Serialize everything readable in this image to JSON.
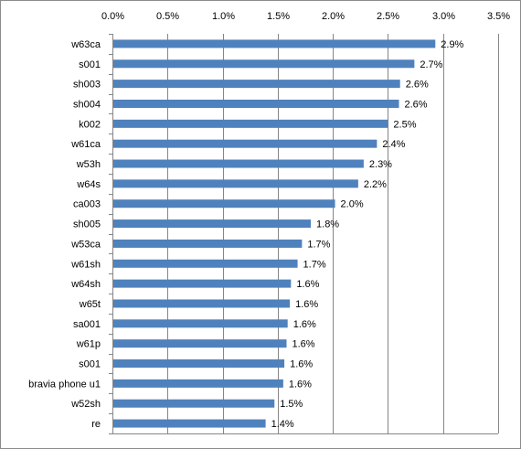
{
  "chart_data": {
    "type": "bar",
    "orientation": "horizontal",
    "title": "",
    "xlabel": "",
    "ylabel": "",
    "xlim": [
      0,
      3.5
    ],
    "x_ticks": [
      0,
      0.5,
      1.0,
      1.5,
      2.0,
      2.5,
      3.0,
      3.5
    ],
    "x_tick_labels": [
      "0.0%",
      "0.5%",
      "1.0%",
      "1.5%",
      "2.0%",
      "2.5%",
      "3.0%",
      "3.5%"
    ],
    "x_axis_position": "top",
    "grid": "vertical",
    "legend": "none",
    "bar_color": "#4f81bd",
    "categories": [
      "w63ca",
      "s001",
      "sh003",
      "sh004",
      "k002",
      "w61ca",
      "w53h",
      "w64s",
      "ca003",
      "sh005",
      "w53ca",
      "w61sh",
      "w64sh",
      "w65t",
      "sa001",
      "w61p",
      "s001",
      "bravia phone u1",
      "w52sh",
      "re"
    ],
    "values": [
      2.93,
      2.74,
      2.61,
      2.6,
      2.5,
      2.4,
      2.28,
      2.23,
      2.02,
      1.8,
      1.72,
      1.68,
      1.62,
      1.61,
      1.59,
      1.58,
      1.56,
      1.55,
      1.47,
      1.39
    ],
    "data_labels": [
      "2.9%",
      "2.7%",
      "2.6%",
      "2.6%",
      "2.5%",
      "2.4%",
      "2.3%",
      "2.2%",
      "2.0%",
      "1.8%",
      "1.7%",
      "1.7%",
      "1.6%",
      "1.6%",
      "1.6%",
      "1.6%",
      "1.6%",
      "1.6%",
      "1.5%",
      "1.4%"
    ]
  }
}
